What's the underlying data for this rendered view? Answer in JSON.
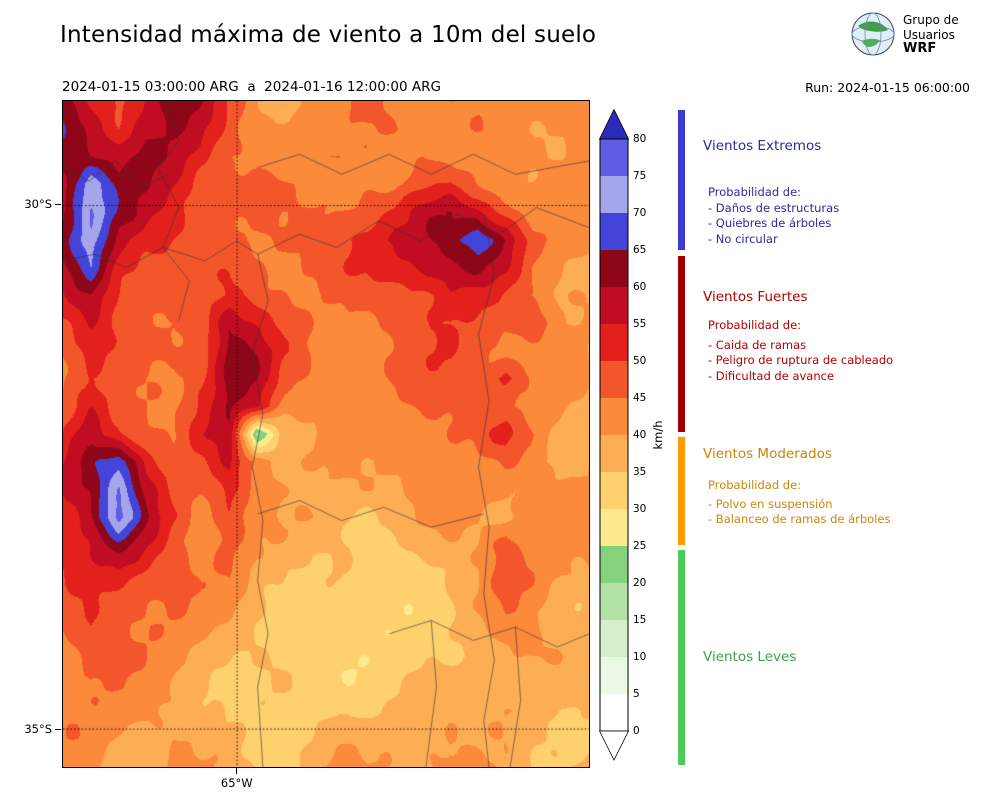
{
  "header": {
    "title": "Intensidad máxima de viento a 10m del suelo",
    "date_range": "2024-01-15 03:00:00 ARG  a  2024-01-16 12:00:00 ARG",
    "run": "Run: 2024-01-15 06:00:00"
  },
  "logo": {
    "line1": "Grupo de",
    "line2": "Usuarios",
    "line3": "WRF"
  },
  "map": {
    "lat_labels": [
      {
        "text": "30°S",
        "y": 0.157
      },
      {
        "text": "35°S",
        "y": 0.943
      }
    ],
    "lon_labels": [
      {
        "text": "65°W",
        "x": 0.331
      }
    ],
    "boundaries": [
      [
        [
          0.2,
          0.0
        ],
        [
          0.22,
          0.06
        ],
        [
          0.18,
          0.1
        ],
        [
          0.22,
          0.16
        ],
        [
          0.19,
          0.22
        ],
        [
          0.24,
          0.27
        ],
        [
          0.22,
          0.33
        ]
      ],
      [
        [
          0.0,
          0.24
        ],
        [
          0.06,
          0.23
        ],
        [
          0.12,
          0.25
        ],
        [
          0.19,
          0.22
        ],
        [
          0.27,
          0.24
        ],
        [
          0.33,
          0.21
        ],
        [
          0.37,
          0.23
        ]
      ],
      [
        [
          0.37,
          0.23
        ],
        [
          0.39,
          0.3
        ],
        [
          0.36,
          0.38
        ],
        [
          0.38,
          0.47
        ],
        [
          0.36,
          0.55
        ],
        [
          0.38,
          0.63
        ],
        [
          0.37,
          0.72
        ],
        [
          0.39,
          0.8
        ],
        [
          0.37,
          0.88
        ],
        [
          0.38,
          1.0
        ]
      ],
      [
        [
          0.37,
          0.23
        ],
        [
          0.45,
          0.2
        ],
        [
          0.52,
          0.22
        ],
        [
          0.6,
          0.18
        ],
        [
          0.68,
          0.21
        ],
        [
          0.75,
          0.17
        ],
        [
          0.83,
          0.2
        ],
        [
          0.9,
          0.16
        ],
        [
          1.0,
          0.19
        ]
      ],
      [
        [
          0.8,
          0.17
        ],
        [
          0.82,
          0.26
        ],
        [
          0.79,
          0.35
        ],
        [
          0.81,
          0.45
        ],
        [
          0.79,
          0.55
        ],
        [
          0.81,
          0.64
        ],
        [
          0.8,
          0.74
        ],
        [
          0.82,
          0.84
        ],
        [
          0.8,
          0.93
        ],
        [
          0.81,
          1.0
        ]
      ],
      [
        [
          0.37,
          0.62
        ],
        [
          0.45,
          0.6
        ],
        [
          0.53,
          0.63
        ],
        [
          0.61,
          0.61
        ],
        [
          0.7,
          0.64
        ],
        [
          0.8,
          0.62
        ]
      ],
      [
        [
          0.62,
          0.8
        ],
        [
          0.7,
          0.78
        ],
        [
          0.78,
          0.81
        ],
        [
          0.86,
          0.79
        ],
        [
          0.94,
          0.82
        ],
        [
          1.0,
          0.8
        ]
      ],
      [
        [
          0.7,
          0.78
        ],
        [
          0.71,
          0.88
        ],
        [
          0.69,
          1.0
        ]
      ],
      [
        [
          0.86,
          0.79
        ],
        [
          0.87,
          0.9
        ],
        [
          0.85,
          1.0
        ]
      ],
      [
        [
          0.0,
          0.1
        ],
        [
          0.05,
          0.12
        ],
        [
          0.1,
          0.09
        ],
        [
          0.15,
          0.13
        ],
        [
          0.2,
          0.11
        ]
      ],
      [
        [
          0.37,
          0.1
        ],
        [
          0.45,
          0.08
        ],
        [
          0.53,
          0.11
        ],
        [
          0.62,
          0.08
        ],
        [
          0.7,
          0.11
        ],
        [
          0.78,
          0.08
        ],
        [
          0.86,
          0.11
        ],
        [
          1.0,
          0.09
        ]
      ]
    ]
  },
  "colorbar": {
    "unit": "km/h",
    "ticks": [
      0,
      5,
      10,
      15,
      20,
      25,
      30,
      35,
      40,
      45,
      50,
      55,
      60,
      65,
      70,
      75,
      80
    ],
    "stops": [
      {
        "min": 0,
        "max": 5,
        "color": "#ffffff"
      },
      {
        "min": 5,
        "max": 10,
        "color": "#eaf8e4"
      },
      {
        "min": 10,
        "max": 15,
        "color": "#d4efc9"
      },
      {
        "min": 15,
        "max": 20,
        "color": "#b2e2a5"
      },
      {
        "min": 20,
        "max": 25,
        "color": "#84d27c"
      },
      {
        "min": 25,
        "max": 30,
        "color": "#ffe98e"
      },
      {
        "min": 30,
        "max": 35,
        "color": "#fed06e"
      },
      {
        "min": 35,
        "max": 40,
        "color": "#fdae54"
      },
      {
        "min": 40,
        "max": 45,
        "color": "#fb8a3a"
      },
      {
        "min": 45,
        "max": 50,
        "color": "#f4562c"
      },
      {
        "min": 50,
        "max": 55,
        "color": "#e2211c"
      },
      {
        "min": 55,
        "max": 60,
        "color": "#c00d21"
      },
      {
        "min": 60,
        "max": 65,
        "color": "#8e0719"
      },
      {
        "min": 65,
        "max": 70,
        "color": "#4444d8"
      },
      {
        "min": 70,
        "max": 75,
        "color": "#a5a5ec"
      },
      {
        "min": 75,
        "max": 80,
        "color": "#5e5ee4"
      }
    ],
    "over_color": "#2b2bb9",
    "under_color": "#ffffff"
  },
  "legend": {
    "sections": [
      {
        "title": "Vientos Extremos",
        "color": "#3a3ad0",
        "text_color": "#2a2a9e",
        "prob_label": "Probabilidad de:",
        "items": [
          "- Daños de estructuras",
          "- Quiebres de árboles",
          "- No circular"
        ]
      },
      {
        "title": "Vientos Fuertes",
        "color": "#a00000",
        "text_color": "#b00000",
        "prob_label": "Probabilidad de:",
        "items": [
          "- Caida de ramas",
          "- Peligro de ruptura de cableado",
          "- Dificultad de avance"
        ]
      },
      {
        "title": "Vientos Moderados",
        "color": "#ff9a00",
        "text_color": "#c8860a",
        "prob_label": "Probabilidad de:",
        "items": [
          "- Polvo en suspensión",
          "- Balanceo de ramas de árboles"
        ]
      },
      {
        "title": "Vientos Leves",
        "color": "#4ccc5a",
        "text_color": "#3d9e4a",
        "prob_label": "",
        "items": []
      }
    ]
  },
  "chart_data": {
    "type": "heatmap",
    "title": "Intensidad máxima de viento a 10m del suelo",
    "unit": "km/h",
    "colorbar_range": [
      0,
      80
    ],
    "lat_ticks": [
      "30°S",
      "35°S"
    ],
    "lon_ticks": [
      "65°W"
    ],
    "grid_cols": 20,
    "grid_rows": 25,
    "grid_values_kmh": [
      [
        58,
        52,
        48,
        56,
        62,
        58,
        50,
        44,
        42,
        46,
        44,
        48,
        44,
        42,
        44,
        42,
        40,
        42,
        44,
        42
      ],
      [
        62,
        55,
        50,
        58,
        60,
        55,
        48,
        44,
        46,
        44,
        42,
        44,
        46,
        44,
        42,
        44,
        42,
        40,
        42,
        44
      ],
      [
        60,
        58,
        55,
        62,
        58,
        52,
        46,
        44,
        42,
        44,
        46,
        44,
        42,
        46,
        44,
        42,
        44,
        42,
        40,
        42
      ],
      [
        58,
        72,
        60,
        58,
        55,
        50,
        48,
        46,
        44,
        42,
        44,
        46,
        44,
        48,
        52,
        48,
        44,
        42,
        42,
        40
      ],
      [
        60,
        75,
        62,
        55,
        52,
        48,
        46,
        44,
        42,
        44,
        46,
        48,
        52,
        58,
        62,
        60,
        52,
        44,
        42,
        42
      ],
      [
        62,
        74,
        58,
        52,
        50,
        46,
        44,
        42,
        44,
        46,
        48,
        52,
        58,
        62,
        65,
        72,
        62,
        48,
        44,
        42
      ],
      [
        58,
        70,
        55,
        50,
        48,
        44,
        46,
        44,
        42,
        44,
        46,
        50,
        55,
        60,
        62,
        62,
        55,
        46,
        42,
        40
      ],
      [
        55,
        62,
        52,
        48,
        46,
        44,
        48,
        46,
        44,
        42,
        44,
        46,
        48,
        52,
        55,
        52,
        48,
        44,
        42,
        42
      ],
      [
        52,
        58,
        50,
        46,
        44,
        46,
        58,
        52,
        46,
        44,
        42,
        44,
        46,
        48,
        50,
        48,
        46,
        50,
        40,
        42
      ],
      [
        50,
        55,
        48,
        44,
        46,
        48,
        62,
        58,
        48,
        44,
        42,
        44,
        44,
        46,
        48,
        46,
        44,
        42,
        42,
        40
      ],
      [
        48,
        52,
        46,
        44,
        44,
        50,
        64,
        60,
        46,
        44,
        42,
        42,
        44,
        44,
        46,
        44,
        52,
        44,
        40,
        42
      ],
      [
        46,
        55,
        48,
        46,
        44,
        52,
        62,
        58,
        44,
        42,
        40,
        42,
        42,
        44,
        44,
        46,
        44,
        42,
        42,
        40
      ],
      [
        48,
        58,
        52,
        48,
        46,
        54,
        60,
        22,
        42,
        40,
        42,
        40,
        42,
        42,
        44,
        44,
        50,
        44,
        40,
        38
      ],
      [
        52,
        62,
        70,
        55,
        48,
        50,
        58,
        46,
        40,
        42,
        40,
        38,
        40,
        42,
        42,
        42,
        44,
        42,
        38,
        40
      ],
      [
        55,
        60,
        74,
        58,
        50,
        48,
        55,
        44,
        40,
        38,
        40,
        40,
        38,
        40,
        42,
        44,
        42,
        40,
        40,
        38
      ],
      [
        52,
        58,
        76,
        60,
        52,
        46,
        52,
        42,
        38,
        40,
        38,
        36,
        38,
        40,
        42,
        42,
        40,
        42,
        38,
        40
      ],
      [
        50,
        55,
        62,
        55,
        48,
        44,
        48,
        40,
        38,
        36,
        38,
        36,
        36,
        38,
        40,
        42,
        50,
        40,
        38,
        38
      ],
      [
        48,
        52,
        55,
        50,
        46,
        42,
        44,
        38,
        36,
        34,
        36,
        34,
        36,
        36,
        38,
        40,
        48,
        44,
        40,
        38
      ],
      [
        46,
        50,
        48,
        46,
        44,
        40,
        40,
        36,
        34,
        33,
        34,
        33,
        34,
        36,
        38,
        40,
        44,
        42,
        38,
        36
      ],
      [
        45,
        50,
        46,
        44,
        42,
        38,
        36,
        34,
        33,
        32,
        33,
        32,
        33,
        34,
        36,
        38,
        42,
        40,
        38,
        38
      ],
      [
        44,
        48,
        44,
        42,
        40,
        36,
        34,
        33,
        32,
        33,
        32,
        33,
        32,
        33,
        34,
        36,
        40,
        42,
        40,
        36
      ],
      [
        46,
        46,
        42,
        40,
        38,
        36,
        33,
        32,
        33,
        32,
        33,
        32,
        33,
        34,
        36,
        38,
        40,
        38,
        38,
        40
      ],
      [
        46,
        44,
        42,
        40,
        38,
        36,
        34,
        33,
        32,
        33,
        34,
        33,
        34,
        36,
        38,
        40,
        42,
        40,
        36,
        38
      ],
      [
        44,
        44,
        40,
        38,
        40,
        38,
        36,
        34,
        33,
        34,
        36,
        35,
        36,
        38,
        40,
        38,
        40,
        38,
        38,
        36
      ],
      [
        42,
        42,
        38,
        40,
        42,
        40,
        38,
        36,
        34,
        36,
        38,
        36,
        38,
        40,
        42,
        40,
        38,
        36,
        38,
        40
      ]
    ]
  }
}
